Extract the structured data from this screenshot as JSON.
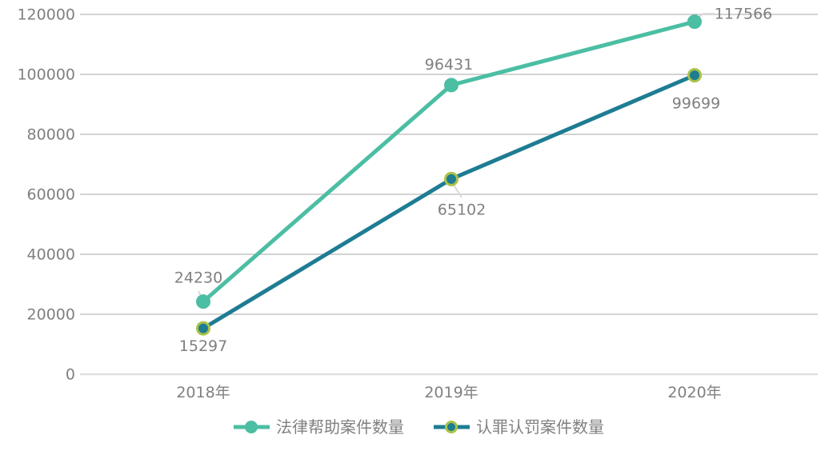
{
  "chart_data": {
    "type": "line",
    "title": "",
    "xlabel": "",
    "ylabel": "",
    "categories": [
      "2018年",
      "2019年",
      "2020年"
    ],
    "series": [
      {
        "name": "法律帮助案件数量",
        "values": [
          24230,
          96431,
          117566
        ],
        "color": "#4BBEA3",
        "marker": "filled-circle"
      },
      {
        "name": "认罪认罚案件数量",
        "values": [
          15297,
          65102,
          99699
        ],
        "color": "#1E7C93",
        "marker": "ring-circle",
        "marker_ring": "#A9C249"
      }
    ],
    "ylim": [
      0,
      120000
    ],
    "ytick_step": 20000,
    "ytick_labels": [
      "0",
      "20000",
      "40000",
      "60000",
      "80000",
      "100000",
      "120000"
    ],
    "data_labels_visible": true,
    "grid": true,
    "legend_position": "bottom",
    "colors": {
      "text": "#808080",
      "gridline": "#B9B9B9",
      "axis_line": "#DFDFDF",
      "leader_line": "#D9D9D9",
      "background": "#FFFFFF"
    }
  }
}
